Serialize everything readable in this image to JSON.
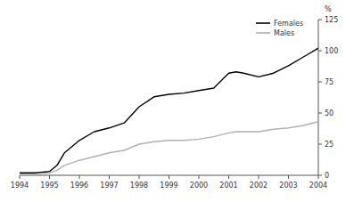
{
  "chart_data": {
    "type": "line",
    "x": [
      1994,
      1994.5,
      1995,
      1995.25,
      1995.5,
      1996,
      1996.5,
      1997,
      1997.5,
      1998,
      1998.5,
      1999,
      1999.5,
      2000,
      2000.5,
      2001,
      2001.25,
      2001.5,
      2002,
      2002.5,
      2003,
      2003.5,
      2004
    ],
    "series": [
      {
        "name": "Females",
        "color": "#000000",
        "values": [
          2,
          2,
          3,
          8,
          18,
          28,
          35,
          38,
          42,
          55,
          63,
          65,
          66,
          68,
          70,
          82,
          83,
          82,
          79,
          82,
          88,
          95,
          102
        ]
      },
      {
        "name": "Males",
        "color": "#b0b0b0",
        "values": [
          1,
          1,
          2,
          4,
          8,
          12,
          15,
          18,
          20,
          25,
          27,
          28,
          28,
          29,
          31,
          34,
          35,
          35,
          35,
          37,
          38,
          40,
          43
        ]
      }
    ],
    "xlim": [
      1994,
      2004
    ],
    "ylim": [
      0,
      125
    ],
    "xticks": [
      1994,
      1995,
      1996,
      1997,
      1998,
      1999,
      2000,
      2001,
      2002,
      2003,
      2004
    ],
    "yticks": [
      0,
      25,
      50,
      75,
      100,
      125
    ],
    "ylabel": "%",
    "grid": false,
    "legend": "upper right"
  }
}
